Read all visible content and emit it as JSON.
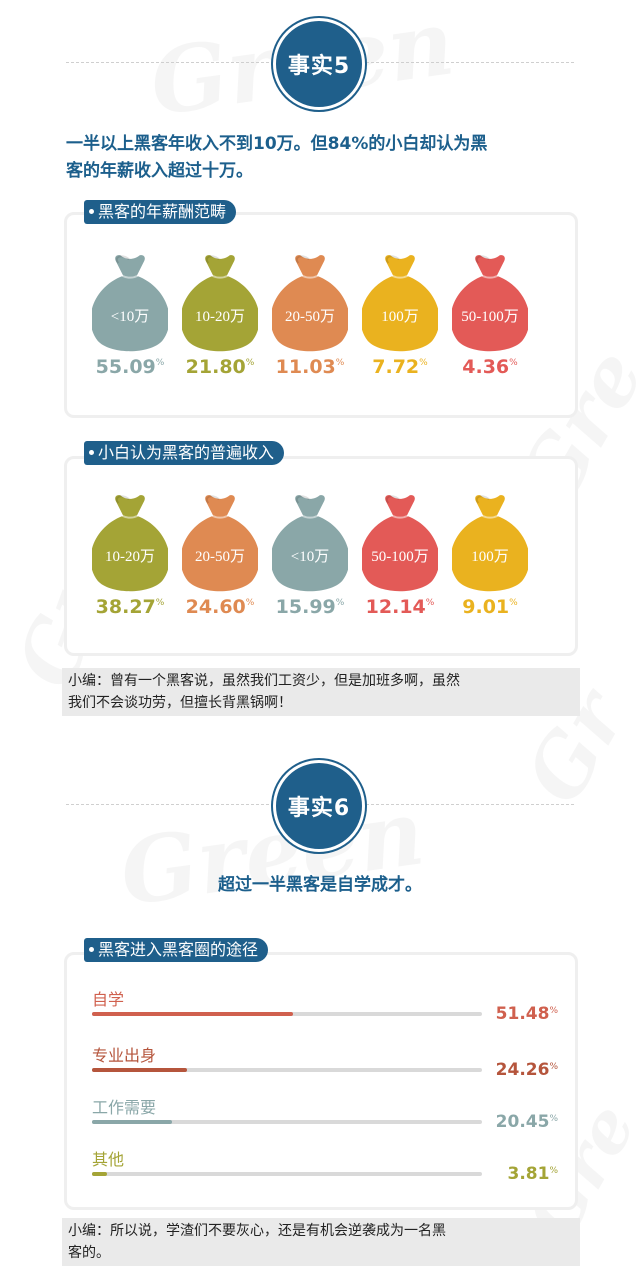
{
  "colors": {
    "blue": "#1f5f8b",
    "grey": "#8aa7a8",
    "olive": "#a4a436",
    "orange": "#df8a52",
    "yellow": "#eab21f",
    "red": "#e35a57"
  },
  "fact5": {
    "badge": "事实5",
    "headline_line1": "一半以上黑客年收入不到10万。但84%的小白却认为黑",
    "headline_line2": "客的年薪收入超过十万。"
  },
  "chart_data": [
    {
      "type": "bar",
      "title": "黑客的年薪酬范畴",
      "categories": [
        "<10万",
        "10-20万",
        "20-50万",
        "100万",
        "50-100万"
      ],
      "values": [
        55.09,
        21.8,
        11.03,
        7.72,
        4.36
      ],
      "value_labels": [
        "55.09",
        "21.80",
        "11.03",
        "7.72",
        "4.36"
      ],
      "unit": "%",
      "colors": [
        "#8aa7a8",
        "#a4a436",
        "#df8a52",
        "#eab21f",
        "#e35a57"
      ]
    },
    {
      "type": "bar",
      "title": "小白认为黑客的普遍收入",
      "categories": [
        "10-20万",
        "20-50万",
        "<10万",
        "50-100万",
        "100万"
      ],
      "values": [
        38.27,
        24.6,
        15.99,
        12.14,
        9.01
      ],
      "value_labels": [
        "38.27",
        "24.60",
        "15.99",
        "12.14",
        "9.01"
      ],
      "unit": "%",
      "colors": [
        "#a4a436",
        "#df8a52",
        "#8aa7a8",
        "#e35a57",
        "#eab21f"
      ]
    },
    {
      "type": "bar",
      "title": "黑客进入黑客圈的途径",
      "categories": [
        "自学",
        "专业出身",
        "工作需要",
        "其他"
      ],
      "values": [
        51.48,
        24.26,
        20.45,
        3.81
      ],
      "value_labels": [
        "51.48",
        "24.26",
        "20.45",
        "3.81"
      ],
      "unit": "%",
      "xlim": [
        0,
        100
      ],
      "colors": [
        "#d0604e",
        "#b5553c",
        "#8aa7a8",
        "#a4a436"
      ]
    }
  ],
  "note1": {
    "line1": "小编：曾有一个黑客说，虽然我们工资少，但是加班多啊，虽然",
    "line2": "我们不会谈功劳，但擅长背黑锅啊！"
  },
  "fact6": {
    "badge": "事实6",
    "headline": "超过一半黑客是自学成才。"
  },
  "note2": {
    "line1": "小编：所以说，学渣们不要灰心，还是有机会逆袭成为一名黑",
    "line2": "客的。"
  }
}
